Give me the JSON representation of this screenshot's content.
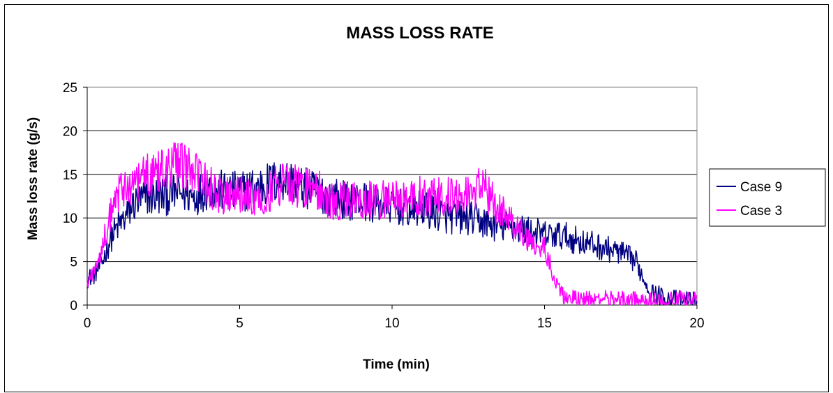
{
  "chart_data": {
    "type": "line",
    "title": "MASS LOSS RATE",
    "xlabel": "Time (min)",
    "ylabel": "Mass loss rate (g/s)",
    "xlim": [
      0,
      20
    ],
    "ylim": [
      0,
      25
    ],
    "xticks": [
      "0",
      "5",
      "10",
      "15",
      "20"
    ],
    "yticks": [
      "0",
      "5",
      "10",
      "15",
      "20",
      "25"
    ],
    "grid": "horizontal",
    "legend_position": "right",
    "series": [
      {
        "name": "Case 9",
        "color": "#000080",
        "x": [
          0,
          0.25,
          0.5,
          0.75,
          1,
          1.25,
          1.5,
          1.75,
          2,
          2.5,
          3,
          3.5,
          4,
          4.5,
          5,
          5.5,
          6,
          6.5,
          7,
          7.5,
          8,
          8.5,
          9,
          9.5,
          10,
          10.5,
          11,
          11.5,
          12,
          12.5,
          13,
          13.5,
          14,
          14.5,
          15,
          15.5,
          16,
          16.5,
          17,
          17.5,
          18,
          18.25,
          18.5,
          19,
          19.5,
          20
        ],
        "y": [
          3,
          3.5,
          5,
          7.5,
          9,
          10,
          11.5,
          12,
          12.5,
          12.5,
          13,
          12.5,
          13.5,
          13,
          13,
          13.5,
          14,
          14.5,
          13.5,
          13,
          12.5,
          12,
          12,
          11.5,
          11.5,
          11,
          11,
          10.5,
          10,
          10,
          9.5,
          9,
          9,
          8.5,
          8,
          8,
          7.5,
          7,
          6.5,
          6,
          5,
          3,
          1.5,
          0.8,
          0.6,
          0.5
        ]
      },
      {
        "name": "Case 3",
        "color": "#ff00ff",
        "x": [
          0,
          0.25,
          0.5,
          0.75,
          1,
          1.25,
          1.5,
          1.75,
          2,
          2.5,
          3,
          3.5,
          4,
          4.5,
          5,
          5.5,
          6,
          6.5,
          7,
          7.5,
          8,
          8.5,
          9,
          9.5,
          10,
          10.5,
          11,
          11.5,
          12,
          12.5,
          13,
          13.5,
          14,
          14.5,
          15,
          15.25,
          15.5,
          15.75,
          16,
          16.5,
          17,
          17.5,
          18,
          18.5,
          19,
          19.5,
          20
        ],
        "y": [
          2.5,
          4,
          7,
          10,
          12.5,
          13.5,
          14,
          14.5,
          15,
          16,
          16,
          15,
          13.5,
          12.5,
          12.5,
          12,
          13,
          14.5,
          13.5,
          13.5,
          12,
          12,
          12,
          12,
          12,
          12.5,
          12.5,
          12.5,
          12.5,
          13,
          13.5,
          11,
          9,
          7.5,
          6.5,
          4,
          1.5,
          0.8,
          0.6,
          0.5,
          0.6,
          0.5,
          0.5,
          0.5,
          0.5,
          0.5,
          0.5
        ]
      }
    ]
  }
}
